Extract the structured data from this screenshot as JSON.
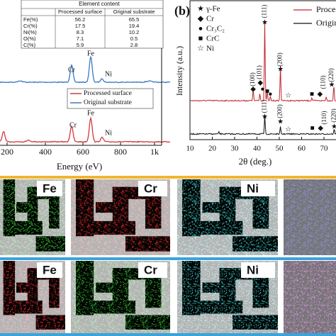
{
  "panel_a": {
    "table": {
      "title": "Element content",
      "columns": [
        "Processed surface",
        "Original substrate"
      ],
      "rows": [
        {
          "label": "Fe(%)",
          "values": [
            56.2,
            65.5
          ]
        },
        {
          "label": "Cr(%)",
          "values": [
            17.5,
            19.4
          ]
        },
        {
          "label": "Ni(%)",
          "values": [
            8.3,
            10.2
          ]
        },
        {
          "label": "O(%)",
          "values": [
            7.1,
            0.5
          ]
        },
        {
          "label": "C(%)",
          "values": [
            5.9,
            2.8
          ]
        }
      ]
    },
    "legend": [
      "Processed surface",
      "Original substrate"
    ],
    "peaks": [
      "Cr",
      "Fe",
      "Ni"
    ],
    "xticks": [
      "200",
      "400",
      "600",
      "800",
      "1k"
    ],
    "x_label": "Energy (eV)"
  },
  "panel_b": {
    "label": "(b)",
    "legend": [
      "Processed",
      "Original"
    ],
    "phases": [
      "γ-Fe",
      "Cr",
      "Cr₃C₂",
      "CrC",
      "Ni"
    ],
    "peak_labels": [
      "(111)",
      "(200)",
      "(100)",
      "(101)",
      "(110)",
      "(220)"
    ],
    "y_label": "Intensity (a.u.)",
    "x_label": "2θ (deg.)",
    "xticks": [
      10,
      20,
      30,
      40,
      50,
      60,
      70
    ]
  },
  "maps": {
    "rows": [
      [
        "Fe",
        "Cr",
        "Ni"
      ],
      [
        "Fe",
        "Cr",
        "Ni"
      ]
    ]
  }
}
